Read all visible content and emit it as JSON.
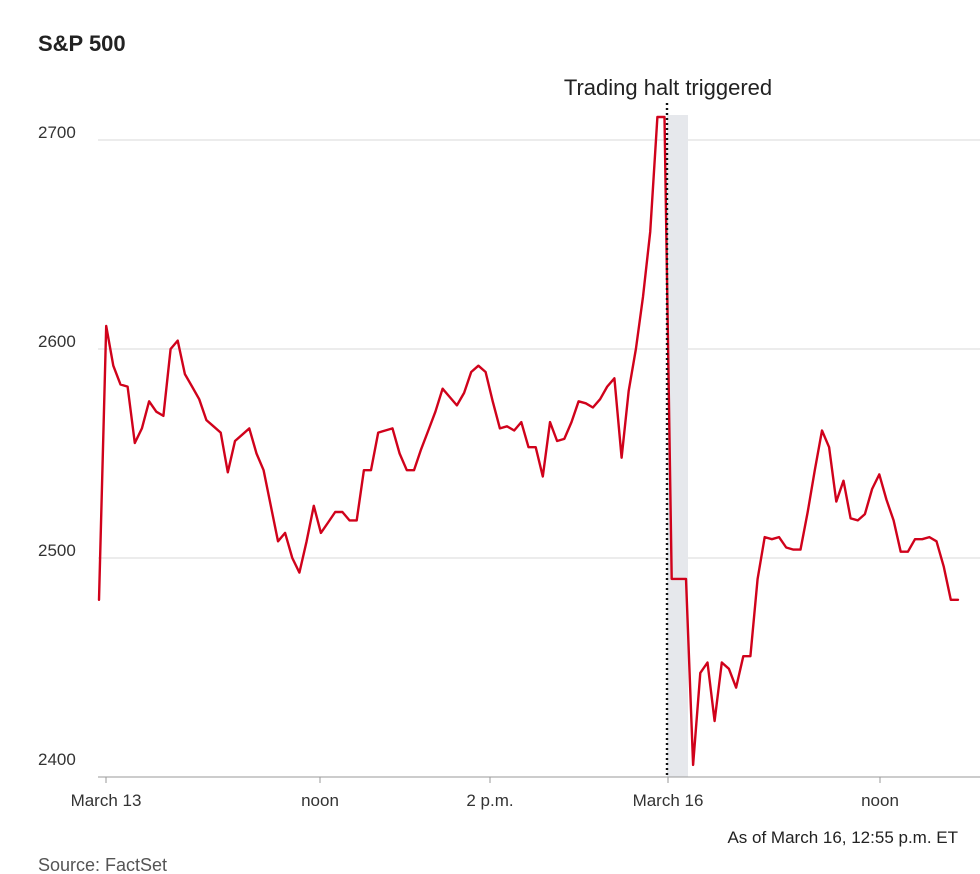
{
  "chart_data": {
    "type": "line",
    "title": "S&P 500",
    "annotation": "Trading halt triggered",
    "note": "As of March 16, 12:55 p.m. ET",
    "source": "Source: FactSet",
    "ylim": [
      2400,
      2710
    ],
    "yticks": [
      2400,
      2500,
      2600,
      2700
    ],
    "xlabels": [
      "March 13",
      "noon",
      "2 p.m.",
      "March 16",
      "noon"
    ],
    "line_color": "#d0021b",
    "halt_color": "#e6e8ec",
    "series": [
      {
        "name": "S&P 500",
        "values": [
          2480,
          2611,
          2592,
          2583,
          2582,
          2555,
          2562,
          2575,
          2570,
          2568,
          2600,
          2604,
          2588,
          2582,
          2576,
          2566,
          2563,
          2560,
          2541,
          2556,
          2559,
          2562,
          2550,
          2542,
          2525,
          2508,
          2512,
          2500,
          2493,
          2508,
          2525,
          2512,
          2517,
          2522,
          2522,
          2518,
          2518,
          2542,
          2542,
          2560,
          2561,
          2562,
          2550,
          2542,
          2542,
          2552,
          2561,
          2570,
          2581,
          2577,
          2573,
          2579,
          2589,
          2592,
          2589,
          2575,
          2562,
          2563,
          2561,
          2565,
          2553,
          2553,
          2539,
          2565,
          2556,
          2557,
          2565,
          2575,
          2574,
          2572,
          2576,
          2582,
          2586,
          2548,
          2580,
          2600,
          2625,
          2656,
          2711,
          2711,
          2490,
          2490,
          2490,
          2401,
          2445,
          2450,
          2422,
          2450,
          2447,
          2438,
          2453,
          2453,
          2490,
          2510,
          2509,
          2510,
          2505,
          2504,
          2504,
          2522,
          2542,
          2561,
          2553,
          2527,
          2537,
          2519,
          2518,
          2521,
          2533,
          2540,
          2528,
          2518,
          2503,
          2503,
          2509,
          2509,
          2510,
          2508,
          2496,
          2480,
          2480
        ]
      }
    ]
  }
}
